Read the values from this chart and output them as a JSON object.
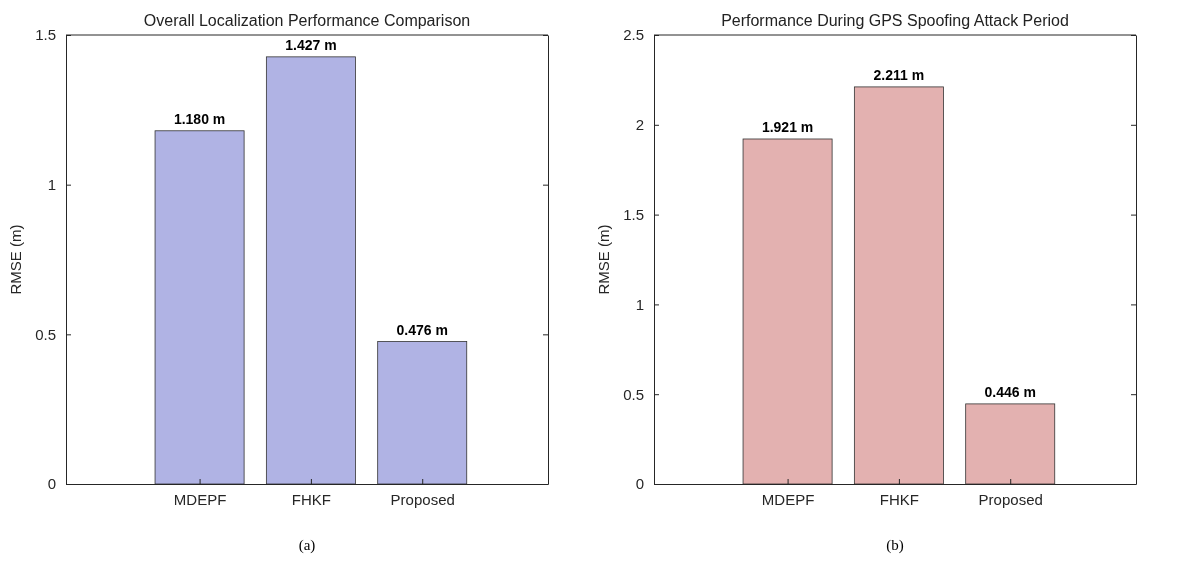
{
  "chart_data": [
    {
      "type": "bar",
      "title": "Overall Localization Performance Comparison",
      "ylabel": "RMSE (m)",
      "categories": [
        "MDEPF",
        "FHKF",
        "Proposed"
      ],
      "values": [
        1.18,
        1.427,
        0.476
      ],
      "color": "#b0b3e4",
      "ylim": [
        0,
        1.5
      ],
      "yticks": [
        0,
        0.5,
        1,
        1.5
      ],
      "grid": false,
      "value_labels": [
        "1.180 m",
        "1.427 m",
        "0.476 m"
      ],
      "annotations": [
        "(a)"
      ]
    },
    {
      "type": "bar",
      "title": "Performance During GPS Spoofing Attack Period",
      "ylabel": "RMSE (m)",
      "categories": [
        "MDEPF",
        "FHKF",
        "Proposed"
      ],
      "values": [
        1.921,
        2.211,
        0.446
      ],
      "color": "#e3b1b0",
      "ylim": [
        0,
        2.5
      ],
      "yticks": [
        0,
        0.5,
        1,
        1.5,
        2,
        2.5
      ],
      "grid": false,
      "value_labels": [
        "1.921 m",
        "2.211 m",
        "0.446 m"
      ],
      "annotations": [
        "(b)"
      ]
    }
  ]
}
